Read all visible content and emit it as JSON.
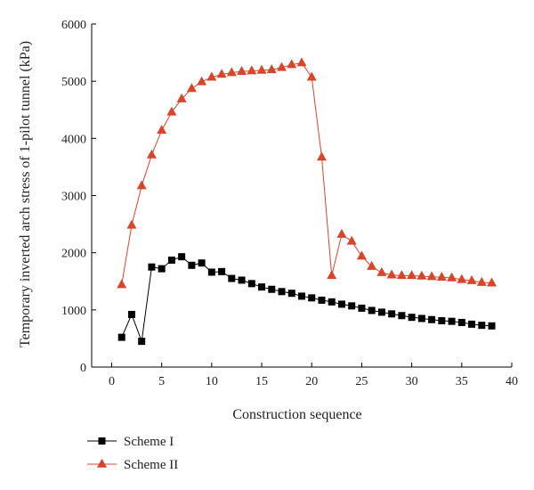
{
  "chart_data": {
    "type": "line",
    "title": "",
    "xlabel": "Construction sequence",
    "ylabel": "Temporary inverted arch stress of 1-pilot tunnel (kPa)",
    "xlim": [
      -2,
      40
    ],
    "ylim": [
      0,
      6000
    ],
    "xticks": [
      0,
      5,
      10,
      15,
      20,
      25,
      30,
      35,
      40
    ],
    "yticks": [
      0,
      1000,
      2000,
      3000,
      4000,
      5000,
      6000
    ],
    "grid": false,
    "legend_position": "bottom-left",
    "x": [
      1,
      2,
      3,
      4,
      5,
      6,
      7,
      8,
      9,
      10,
      11,
      12,
      13,
      14,
      15,
      16,
      17,
      18,
      19,
      20,
      21,
      22,
      23,
      24,
      25,
      26,
      27,
      28,
      29,
      30,
      31,
      32,
      33,
      34,
      35,
      36,
      37,
      38
    ],
    "series": [
      {
        "name": "Scheme I",
        "color": "#000000",
        "marker": "square",
        "values": [
          520,
          920,
          450,
          1750,
          1720,
          1870,
          1930,
          1780,
          1820,
          1660,
          1670,
          1550,
          1520,
          1460,
          1400,
          1360,
          1320,
          1290,
          1240,
          1210,
          1170,
          1140,
          1100,
          1070,
          1030,
          990,
          960,
          930,
          900,
          870,
          850,
          830,
          810,
          800,
          780,
          750,
          730,
          720
        ]
      },
      {
        "name": "Scheme II",
        "color": "#d9452b",
        "marker": "triangle",
        "values": [
          1440,
          2480,
          3170,
          3710,
          4140,
          4460,
          4690,
          4870,
          4990,
          5070,
          5120,
          5150,
          5170,
          5180,
          5190,
          5200,
          5240,
          5290,
          5320,
          5070,
          3670,
          1600,
          2320,
          2200,
          1940,
          1760,
          1650,
          1610,
          1600,
          1600,
          1590,
          1580,
          1570,
          1560,
          1530,
          1510,
          1480,
          1470
        ]
      }
    ]
  }
}
